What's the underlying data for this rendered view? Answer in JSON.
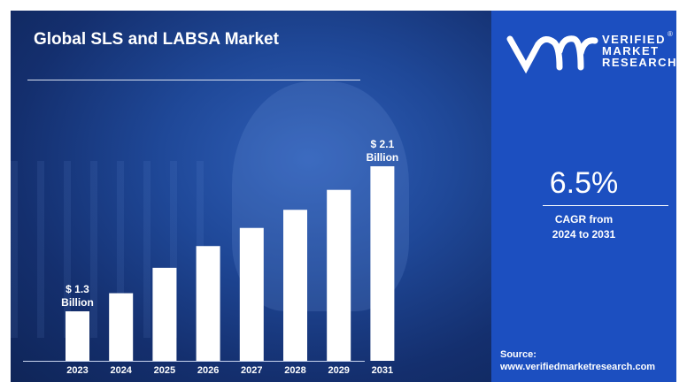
{
  "chart_data": {
    "type": "bar",
    "title": "Global SLS and LABSA Market",
    "categories": [
      "2023",
      "2024",
      "2025",
      "2026",
      "2027",
      "2028",
      "2029",
      "2031"
    ],
    "values": [
      1.3,
      1.4,
      1.54,
      1.66,
      1.76,
      1.86,
      1.97,
      2.1
    ],
    "data_labels": [
      {
        "category": "2023",
        "line1": "$ 1.3",
        "line2": "Billion"
      },
      {
        "category": "2031",
        "line1": "$ 2.1",
        "line2": "Billion"
      }
    ],
    "unit": "USD Billion",
    "grid": false,
    "bar_color": "#ffffff"
  },
  "brand": {
    "logo_mark": "vmr",
    "line1": "VERIFIED",
    "line2": "MARKET",
    "line3": "RESEARCH",
    "registered": "®"
  },
  "cagr": {
    "value": "6.5%",
    "label1": "CAGR from",
    "label2": "2024 to 2031"
  },
  "source": {
    "label": "Source:",
    "url": "www.verifiedmarketresearch.com"
  },
  "colors": {
    "panel": "#1c4fc0",
    "background": "#1f4898"
  }
}
